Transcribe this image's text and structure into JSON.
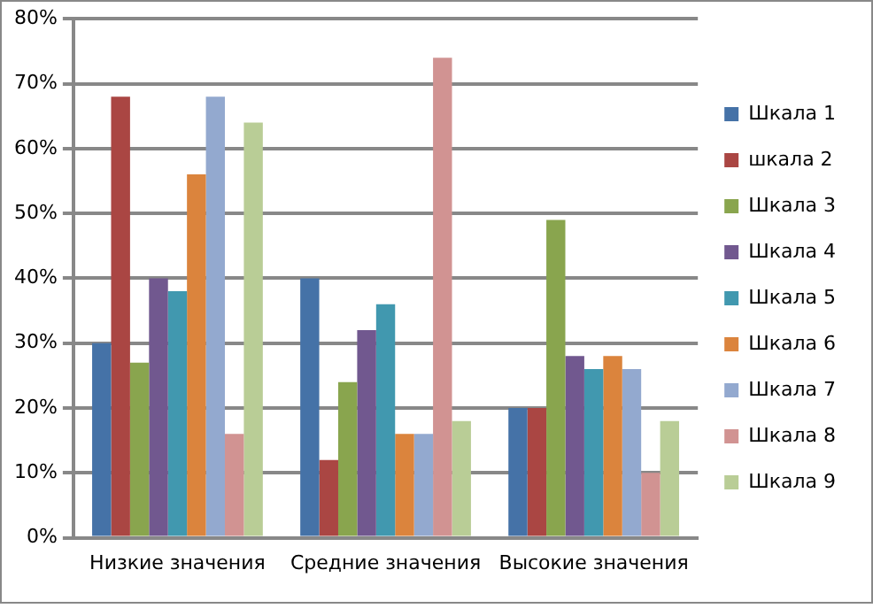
{
  "chart_data": {
    "type": "bar",
    "categories": [
      "Низкие значения",
      "Средние значения",
      "Высокие значения"
    ],
    "series": [
      {
        "name": "Шкала 1",
        "color": "#4572a7",
        "values": [
          30,
          40,
          20
        ]
      },
      {
        "name": "шкала 2",
        "color": "#aa4643",
        "values": [
          68,
          12,
          20
        ]
      },
      {
        "name": "Шкала 3",
        "color": "#89a54e",
        "values": [
          27,
          24,
          49
        ]
      },
      {
        "name": "Шкала 4",
        "color": "#71588f",
        "values": [
          40,
          32,
          28
        ]
      },
      {
        "name": "Шкала 5",
        "color": "#4198af",
        "values": [
          38,
          36,
          26
        ]
      },
      {
        "name": "Шкала 6",
        "color": "#db843d",
        "values": [
          56,
          16,
          28
        ]
      },
      {
        "name": "Шкала 7",
        "color": "#93a9cf",
        "values": [
          68,
          16,
          26
        ]
      },
      {
        "name": "Шкала 8",
        "color": "#d19392",
        "values": [
          16,
          74,
          10
        ]
      },
      {
        "name": "Шкала 9",
        "color": "#b9cd96",
        "values": [
          64,
          18,
          18
        ]
      }
    ],
    "ylim": [
      0,
      80
    ],
    "yticks": [
      {
        "value": 0,
        "label": "0%"
      },
      {
        "value": 10,
        "label": "10%"
      },
      {
        "value": 20,
        "label": "20%"
      },
      {
        "value": 30,
        "label": "30%"
      },
      {
        "value": 40,
        "label": "40%"
      },
      {
        "value": 50,
        "label": "50%"
      },
      {
        "value": 60,
        "label": "60%"
      },
      {
        "value": 70,
        "label": "70%"
      },
      {
        "value": 80,
        "label": "80%"
      }
    ],
    "grid": "y",
    "legend": "right"
  }
}
